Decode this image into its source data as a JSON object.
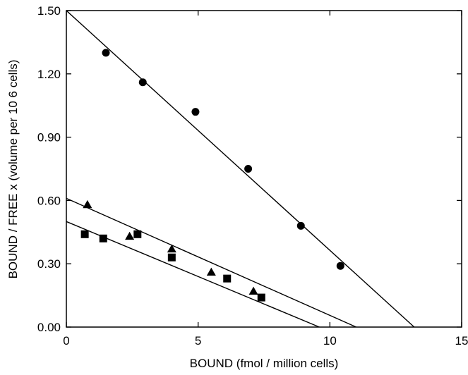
{
  "chart_data": {
    "type": "scatter",
    "xlabel": "BOUND (fmol / million cells)",
    "ylabel": "BOUND / FREE x (volume per 10 6 cells)",
    "xlim": [
      0,
      15
    ],
    "ylim": [
      0,
      1.5
    ],
    "xticks": [
      0,
      5,
      10,
      15
    ],
    "xtick_labels": [
      "0",
      "5",
      "10",
      "15"
    ],
    "yticks": [
      0,
      0.3,
      0.6,
      0.9,
      1.2,
      1.5
    ],
    "ytick_labels": [
      "0.00",
      "0.30",
      "0.60",
      "0.90",
      "1.20",
      "1.50"
    ],
    "grid": false,
    "series": [
      {
        "marker": "circle",
        "x": [
          1.5,
          2.9,
          4.9,
          6.9,
          8.9,
          10.4
        ],
        "y": [
          1.3,
          1.16,
          1.02,
          0.75,
          0.48,
          0.29
        ],
        "fit": {
          "x": [
            0,
            13.2
          ],
          "y": [
            1.5,
            0.0
          ]
        }
      },
      {
        "marker": "triangle",
        "x": [
          0.8,
          2.4,
          4.0,
          5.5,
          7.1
        ],
        "y": [
          0.58,
          0.43,
          0.37,
          0.26,
          0.17
        ],
        "fit": {
          "x": [
            0,
            11.0
          ],
          "y": [
            0.61,
            0.0
          ]
        }
      },
      {
        "marker": "square",
        "x": [
          0.7,
          1.4,
          2.7,
          4.0,
          6.1,
          7.4
        ],
        "y": [
          0.44,
          0.42,
          0.44,
          0.33,
          0.23,
          0.14
        ],
        "fit": {
          "x": [
            0,
            9.6
          ],
          "y": [
            0.5,
            0.0
          ]
        }
      }
    ]
  }
}
